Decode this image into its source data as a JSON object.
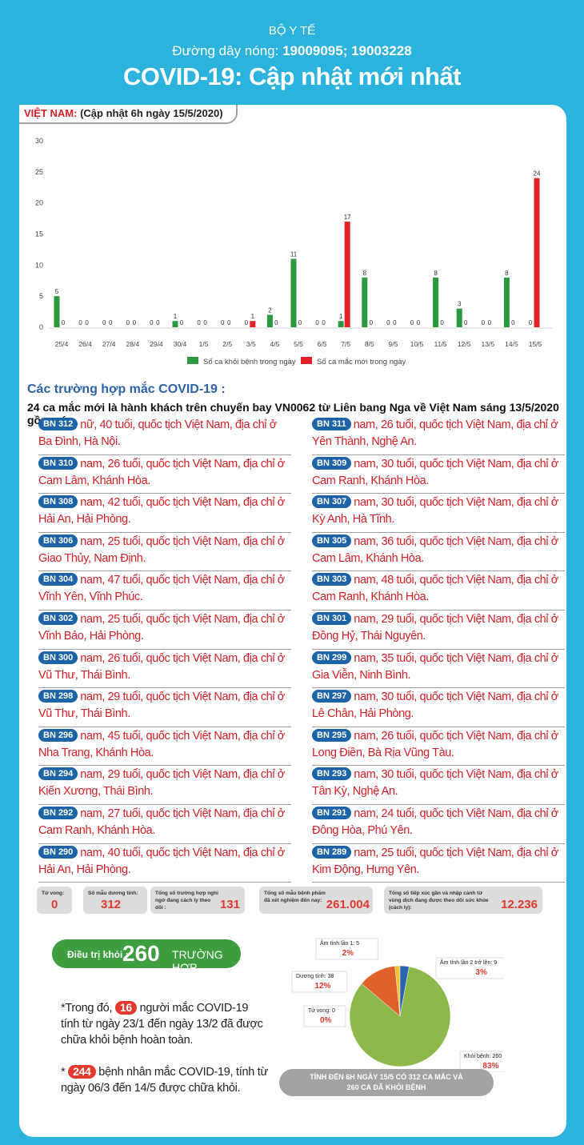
{
  "header": {
    "ministry": "BỘ Y TẾ",
    "hotline_label": "Đường dây nóng: ",
    "hotline_numbers": "19009095; 19003228",
    "title": "COVID-19: Cập nhật mới nhất"
  },
  "country_label": {
    "country": "VIỆT NAM:",
    "update": " (Cập nhật 6h ngày 15/5/2020)"
  },
  "chart_data": {
    "type": "bar",
    "categories": [
      "25/4",
      "26/4",
      "27/4",
      "28/4",
      "29/4",
      "30/4",
      "1/5",
      "2/5",
      "3/5",
      "4/5",
      "5/5",
      "6/5",
      "7/5",
      "8/5",
      "9/5",
      "10/5",
      "11/5",
      "12/5",
      "13/5",
      "14/5",
      "15/5"
    ],
    "series": [
      {
        "name": "Số ca khỏi bệnh trong ngày",
        "color": "#2a9a3e",
        "values": [
          5,
          0,
          0,
          0,
          0,
          1,
          0,
          0,
          0,
          2,
          11,
          0,
          1,
          8,
          0,
          0,
          8,
          3,
          0,
          8,
          0
        ]
      },
      {
        "name": "Số ca mắc mới trong ngày",
        "color": "#e42026",
        "values": [
          0,
          0,
          0,
          0,
          0,
          0,
          0,
          0,
          1,
          0,
          0,
          0,
          17,
          0,
          0,
          0,
          0,
          0,
          0,
          0,
          24
        ]
      }
    ],
    "ylim": [
      0,
      30
    ],
    "yticks": [
      "0",
      "5",
      "10",
      "15",
      "20",
      "25",
      "30"
    ],
    "grid": false,
    "legend_position": "bottom"
  },
  "cases_section": {
    "title": "Các trường hợp mắc COVID-19 :",
    "subtitle": "24 ca mắc mới là hành khách trên chuyến bay VN0062 từ Liên bang Nga về Việt Nam sáng 13/5/2020 gồm có"
  },
  "cases_left": [
    {
      "id": "BN 312",
      "text": "nữ, 40 tuổi, quốc tịch Việt Nam, địa chỉ ở Ba Đình, Hà Nội."
    },
    {
      "id": "BN 310",
      "text": "nam, 26 tuổi, quốc tịch Việt Nam, địa chỉ ở Cam Lâm, Khánh Hòa."
    },
    {
      "id": "BN 308",
      "text": "nam, 42 tuổi, quốc tịch Việt Nam, địa chỉ ở Hải An, Hải Phòng."
    },
    {
      "id": "BN 306",
      "text": "nam, 25 tuổi, quốc tịch Việt Nam, địa chỉ ở Giao Thủy, Nam Định."
    },
    {
      "id": "BN 304",
      "text": "nam, 47 tuổi, quốc tịch Việt Nam, địa chỉ ở Vĩnh Yên, Vĩnh Phúc."
    },
    {
      "id": "BN 302",
      "text": "nam, 25 tuổi, quốc tịch Việt Nam, địa chỉ ở Vĩnh Bảo, Hải Phòng."
    },
    {
      "id": "BN 300",
      "text": "nam, 26 tuổi, quốc tịch Việt Nam, địa chỉ ở Vũ Thư, Thái Bình."
    },
    {
      "id": "BN 298",
      "text": "nam, 29 tuổi, quốc tịch Việt Nam, địa chỉ ở Vũ Thư, Thái Bình."
    },
    {
      "id": "BN 296",
      "text": "nam, 45 tuổi, quốc tịch Việt Nam, địa chỉ ở Nha Trang, Khánh Hòa."
    },
    {
      "id": "BN 294",
      "text": "nam, 29 tuổi, quốc tịch Việt Nam, địa chỉ ở Kiến Xương, Thái Bình."
    },
    {
      "id": "BN 292",
      "text": "nam, 27 tuổi, quốc tịch Việt Nam, địa chỉ ở Cam Ranh, Khánh Hòa."
    },
    {
      "id": "BN 290",
      "text": "nam, 40 tuổi, quốc tịch Việt Nam, địa chỉ ở Hải An, Hải Phòng."
    }
  ],
  "cases_right": [
    {
      "id": "BN 311",
      "text": "nam, 26 tuổi, quốc tịch Việt Nam, địa chỉ ở Yên Thành, Nghệ An."
    },
    {
      "id": "BN 309",
      "text": "nam, 30 tuổi, quốc tịch Việt Nam, địa chỉ ở Cam Ranh, Khánh Hòa."
    },
    {
      "id": "BN 307",
      "text": "nam, 30 tuổi, quốc tịch Việt Nam, địa chỉ ở Kỳ Anh, Hà Tĩnh."
    },
    {
      "id": "BN 305",
      "text": "nam, 36 tuổi, quốc tịch Việt Nam, địa chỉ ở Cam Lâm, Khánh Hòa."
    },
    {
      "id": "BN 303",
      "text": "nam, 48 tuổi, quốc tịch Việt Nam, địa chỉ ở Cam Ranh, Khánh Hòa."
    },
    {
      "id": "BN 301",
      "text": "nam, 29 tuổi, quốc tịch Việt Nam, địa chỉ ở Đồng Hỷ, Thái Nguyên."
    },
    {
      "id": "BN 299",
      "text": "nam, 35 tuổi, quốc tịch Việt Nam, địa chỉ ở Gia Viễn, Ninh Bình."
    },
    {
      "id": "BN 297",
      "text": "nam, 30 tuổi, quốc tịch Việt Nam, địa chỉ ở Lê Chân, Hải Phòng."
    },
    {
      "id": "BN 295",
      "text": "nam, 26 tuổi, quốc tịch Việt Nam, địa chỉ ở Long Điền, Bà Rịa Vũng Tàu."
    },
    {
      "id": "BN 293",
      "text": "nam, 30 tuổi, quốc tịch Việt Nam, địa chỉ ở Tân Kỳ, Nghệ An."
    },
    {
      "id": "BN 291",
      "text": "nam, 24 tuổi, quốc tịch Việt Nam, địa chỉ ở Đông Hòa, Phú Yên."
    },
    {
      "id": "BN 289",
      "text": "nam, 25 tuổi, quốc tịch Việt Nam, địa chỉ ở Kim Động, Hưng Yên."
    }
  ],
  "stats": {
    "deaths_label": "Tử vong:",
    "deaths": "0",
    "positive_label": "Số mẫu dương tính:",
    "positive": "312",
    "suspected_label": "Tổng số trường hợp nghi ngờ đang cách ly theo dõi :",
    "suspected": "131",
    "tested_label": "Tổng số mẫu bệnh phẩm đã xét nghiệm đến nay:",
    "tested": "261.004",
    "monitored_label": "Tổng số tiếp xúc gần và nhập cảnh từ vùng dịch đang được theo dõi sức khỏe (cách ly):",
    "monitored": "12.236"
  },
  "recovery": {
    "label": "Điều trị khỏi :",
    "count": "260",
    "unit": "TRƯỜNG HỢP",
    "note1_pre": "*Trong đó, ",
    "note1_num": "16",
    "note1_post": " người mắc COVID-19 tính từ ngày 23/1 đến ngày 13/2 đã được chữa khỏi bệnh hoàn toàn.",
    "note2_pre": "* ",
    "note2_num": "244",
    "note2_post": " bệnh nhân mắc COVID-19, tính từ ngày 06/3 đến 14/5 được chữa khỏi."
  },
  "pie_data": {
    "type": "pie",
    "slices": [
      {
        "label": "Khỏi bệnh: 260",
        "percent": "83%",
        "value": 260,
        "color": "#8db84a"
      },
      {
        "label": "Dương tính: 38",
        "percent": "12%",
        "value": 38,
        "color": "#e0622b"
      },
      {
        "label": "Âm tính lần 1: 5",
        "percent": "2%",
        "value": 5,
        "color": "#f2c22a"
      },
      {
        "label": "Âm tính lần 2 trở lên: 9",
        "percent": "3%",
        "value": 9,
        "color": "#2b63ad"
      },
      {
        "label": "Tử vong: 0",
        "percent": "0%",
        "value": 0,
        "color": "#888888"
      }
    ]
  },
  "footer": {
    "line1": "TÍNH ĐẾN 6H NGÀY 15/5 CÓ 312 CA MẮC VÀ",
    "line2": "260 CA ĐÃ KHỎI BỆNH"
  }
}
